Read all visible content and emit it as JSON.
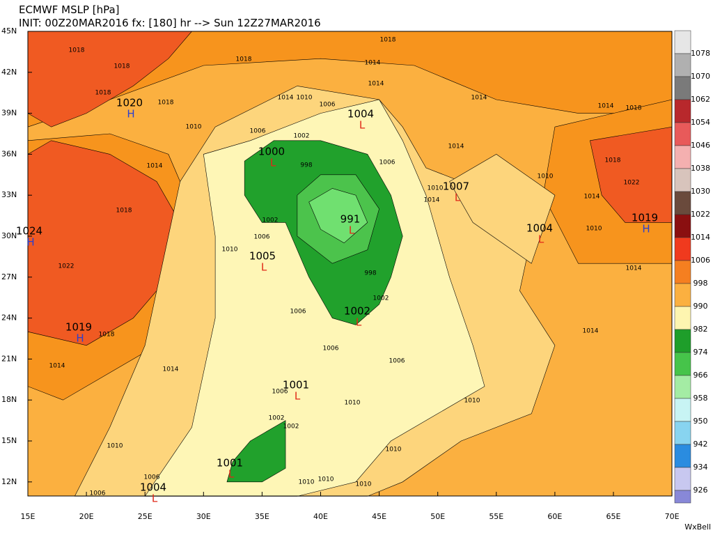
{
  "header": {
    "line1": "ECMWF MSLP [hPa]",
    "line2": "INIT: 00Z20MAR2016 fx: [180] hr --> Sun 12Z27MAR2016"
  },
  "axes": {
    "lat_labels": [
      "45N",
      "42N",
      "39N",
      "36N",
      "33N",
      "30N",
      "27N",
      "24N",
      "21N",
      "18N",
      "15N",
      "12N"
    ],
    "lon_labels": [
      "15E",
      "20E",
      "25E",
      "30E",
      "35E",
      "40E",
      "45E",
      "50E",
      "55E",
      "60E",
      "65E",
      "70E"
    ]
  },
  "colorbar": {
    "labels": [
      "1078",
      "1070",
      "1062",
      "1054",
      "1046",
      "1038",
      "1030",
      "1022",
      "1014",
      "1006",
      "998",
      "990",
      "982",
      "974",
      "966",
      "958",
      "950",
      "942",
      "934",
      "926"
    ],
    "colors": [
      "#e6e6e6",
      "#b0b0b0",
      "#7a7a7a",
      "#b8282c",
      "#e85a5a",
      "#f4b0b0",
      "#d8c4bc",
      "#6a4a3c",
      "#8a0f10",
      "#f03a1e",
      "#f57f20",
      "#fbb040",
      "#fef5b0",
      "#1e9e2a",
      "#46c44a",
      "#a4eca4",
      "#c8f4f4",
      "#88d4f0",
      "#2a8ce0",
      "#c8c8f0",
      "#8888d8"
    ]
  },
  "centers": [
    {
      "symbol": "H",
      "value": "1024"
    },
    {
      "symbol": "H",
      "value": "1019"
    },
    {
      "symbol": "H",
      "value": "1020"
    },
    {
      "symbol": "L",
      "value": "1000"
    },
    {
      "symbol": "L",
      "value": "1004"
    },
    {
      "symbol": "L",
      "value": "991"
    },
    {
      "symbol": "L",
      "value": "1005"
    },
    {
      "symbol": "L",
      "value": "1002"
    },
    {
      "symbol": "L",
      "value": "1007"
    },
    {
      "symbol": "L",
      "value": "1004"
    },
    {
      "symbol": "H",
      "value": "1019"
    },
    {
      "symbol": "L",
      "value": "1001"
    },
    {
      "symbol": "L",
      "value": "1001"
    },
    {
      "symbol": "L",
      "value": "1004"
    }
  ],
  "contour_labels": [
    "1018",
    "1018",
    "1018",
    "1018",
    "1018",
    "1018",
    "1018",
    "1014",
    "1010",
    "1006",
    "1014",
    "1014",
    "1014",
    "1014",
    "1010",
    "1006",
    "1002",
    "998",
    "1014",
    "1014",
    "1018",
    "1022",
    "1014",
    "1010",
    "1010",
    "1014",
    "1018",
    "1010",
    "1006",
    "1002",
    "1022",
    "1014",
    "1010",
    "998",
    "1002",
    "1006",
    "1006",
    "1006",
    "1014",
    "1018",
    "1014",
    "1014",
    "1010",
    "1010",
    "1006",
    "1002",
    "1002",
    "1010",
    "1010",
    "1006",
    "1006",
    "1010",
    "1010",
    "1010",
    "1006"
  ],
  "credit": "WxBell"
}
